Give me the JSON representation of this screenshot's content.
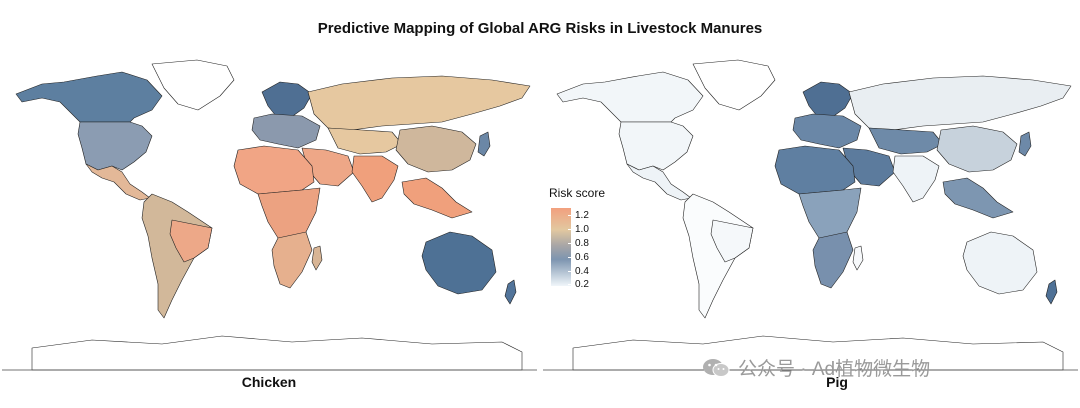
{
  "title": "Predictive Mapping of Global ARG Risks in Livestock Manures",
  "panels": [
    {
      "label": "Chicken",
      "default_fill": "#e2c8a0"
    },
    {
      "label": "Pig",
      "default_fill": "#f1f5f8"
    }
  ],
  "legend": {
    "title": "Risk score",
    "ticks": [
      "1.2",
      "1.0",
      "0.8",
      "0.6",
      "0.4",
      "0.2"
    ],
    "colors": {
      "low": "#f0f6fa",
      "mid_low": "#7d95b0",
      "mid": "#a8a6a6",
      "mid_high": "#e2c8a0",
      "high": "#f2a07e"
    }
  },
  "watermark": {
    "text": "公众号 · Ad植物微生物",
    "icon": "wechat-icon"
  },
  "chicken_regions": {
    "north_america": "#5d7fa0",
    "usa": "#8b9cb2",
    "greenland": "#ffffff",
    "mexico_central": "#e3b898",
    "south_america": "#d2b89a",
    "brazil_east": "#eda888",
    "europe_north": "#4f6f93",
    "europe_central": "#8b99ad",
    "russia": "#e6c8a0",
    "central_asia": "#e6c8a0",
    "china": "#cfb79c",
    "middle_east": "#eea787",
    "india": "#f0a07c",
    "africa_north": "#f1a585",
    "africa_central": "#eca281",
    "africa_south": "#e6b08e",
    "madagascar": "#d8b595",
    "southeast_asia": "#f0a07c",
    "australia": "#4e7195",
    "nz": "#52749a",
    "japan": "#6b87a6",
    "antarctica": "#ffffff"
  },
  "pig_regions": {
    "north_america": "#f2f6f9",
    "usa": "#f2f6f9",
    "greenland": "#ffffff",
    "mexico_central": "#eef3f7",
    "south_america": "#fafcfd",
    "brazil_east": "#f5f8fa",
    "europe_north": "#4f6f93",
    "europe_central": "#6a87a7",
    "russia": "#e9eef2",
    "central_asia": "#6e8aa8",
    "china": "#c7d2dc",
    "middle_east": "#5c7b9d",
    "india": "#eef3f7",
    "africa_north": "#5f7fa1",
    "africa_central": "#8aa2bb",
    "africa_south": "#7890ad",
    "madagascar": "#f7f9fb",
    "southeast_asia": "#7d96b1",
    "australia": "#eef3f7",
    "nz": "#4f7196",
    "japan": "#6d89a8",
    "antarctica": "#ffffff"
  }
}
